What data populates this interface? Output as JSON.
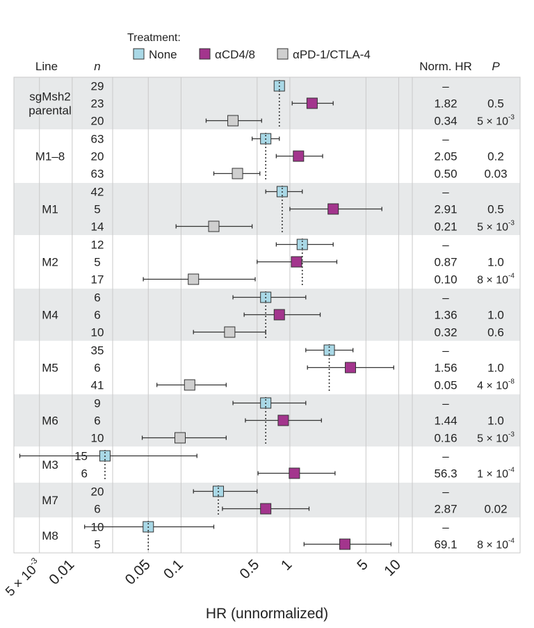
{
  "chart_data": {
    "type": "forest",
    "xlabel": "HR (unnormalized)",
    "xscale": "log",
    "xlim": [
      0.003,
      15
    ],
    "legend": {
      "title": "Treatment:",
      "entries": [
        {
          "label": "None",
          "color": "#a9d8e6"
        },
        {
          "label": "αCD4/8",
          "color": "#a3358d"
        },
        {
          "label": "αPD-1/CTLA-4",
          "color": "#cfcfcf"
        }
      ]
    },
    "column_headers": {
      "line": "Line",
      "n": "n",
      "norm_hr": "Norm. HR",
      "p": "P"
    },
    "ticks": [
      {
        "value": 0.005,
        "base": "5 × 10",
        "exp": "-3"
      },
      {
        "value": 0.01,
        "label": "0.01"
      },
      {
        "value": 0.05,
        "label": "0.05"
      },
      {
        "value": 0.1,
        "label": "0.1"
      },
      {
        "value": 0.5,
        "label": "0.5"
      },
      {
        "value": 1,
        "label": "1"
      },
      {
        "value": 5,
        "label": "5"
      },
      {
        "value": 10,
        "label": "10"
      }
    ],
    "groups": [
      {
        "line": [
          "sgMsh2",
          "parental"
        ],
        "ref": 0.8,
        "shaded": true,
        "rows": [
          {
            "n": "29",
            "treatment": "None",
            "hr": 0.8,
            "lo": 0.8,
            "hi": 0.8,
            "norm_hr": "–",
            "p": ""
          },
          {
            "n": "23",
            "treatment": "αCD4/8",
            "hr": 1.6,
            "lo": 1.05,
            "hi": 2.5,
            "norm_hr": "1.82",
            "p": "0.5"
          },
          {
            "n": "20",
            "treatment": "αPD-1/CTLA-4",
            "hr": 0.3,
            "lo": 0.17,
            "hi": 0.55,
            "norm_hr": "0.34",
            "p_base": "5 × 10",
            "p_exp": "-3"
          }
        ]
      },
      {
        "line": [
          "M1–8"
        ],
        "ref": 0.6,
        "shaded": false,
        "rows": [
          {
            "n": "63",
            "treatment": "None",
            "hr": 0.6,
            "lo": 0.45,
            "hi": 0.8,
            "norm_hr": "–",
            "p": ""
          },
          {
            "n": "20",
            "treatment": "αCD4/8",
            "hr": 1.2,
            "lo": 0.75,
            "hi": 2.0,
            "norm_hr": "2.05",
            "p": "0.2"
          },
          {
            "n": "63",
            "treatment": "αPD-1/CTLA-4",
            "hr": 0.33,
            "lo": 0.2,
            "hi": 0.53,
            "norm_hr": "0.50",
            "p": "0.03"
          }
        ]
      },
      {
        "line": [
          "M1"
        ],
        "ref": 0.85,
        "shaded": true,
        "rows": [
          {
            "n": "42",
            "treatment": "None",
            "hr": 0.85,
            "lo": 0.6,
            "hi": 1.3,
            "norm_hr": "–",
            "p": ""
          },
          {
            "n": "5",
            "treatment": "αCD4/8",
            "hr": 2.5,
            "lo": 1.0,
            "hi": 7.0,
            "norm_hr": "2.91",
            "p": "0.5"
          },
          {
            "n": "14",
            "treatment": "αPD-1/CTLA-4",
            "hr": 0.2,
            "lo": 0.09,
            "hi": 0.45,
            "norm_hr": "0.21",
            "p_base": "5 × 10",
            "p_exp": "-3"
          }
        ]
      },
      {
        "line": [
          "M2"
        ],
        "ref": 1.3,
        "shaded": false,
        "rows": [
          {
            "n": "12",
            "treatment": "None",
            "hr": 1.3,
            "lo": 0.75,
            "hi": 2.5,
            "norm_hr": "–",
            "p": ""
          },
          {
            "n": "5",
            "treatment": "αCD4/8",
            "hr": 1.15,
            "lo": 0.5,
            "hi": 2.7,
            "norm_hr": "0.87",
            "p": "1.0"
          },
          {
            "n": "17",
            "treatment": "αPD-1/CTLA-4",
            "hr": 0.13,
            "lo": 0.045,
            "hi": 0.48,
            "norm_hr": "0.10",
            "p_base": "8 × 10",
            "p_exp": "-4"
          }
        ]
      },
      {
        "line": [
          "M4"
        ],
        "ref": 0.6,
        "shaded": true,
        "rows": [
          {
            "n": "6",
            "treatment": "None",
            "hr": 0.6,
            "lo": 0.3,
            "hi": 1.4,
            "norm_hr": "–",
            "p": ""
          },
          {
            "n": "6",
            "treatment": "αCD4/8",
            "hr": 0.8,
            "lo": 0.38,
            "hi": 1.9,
            "norm_hr": "1.36",
            "p": "1.0"
          },
          {
            "n": "10",
            "treatment": "αPD-1/CTLA-4",
            "hr": 0.28,
            "lo": 0.13,
            "hi": 0.6,
            "norm_hr": "0.32",
            "p": "0.6"
          }
        ]
      },
      {
        "line": [
          "M5"
        ],
        "ref": 2.3,
        "shaded": false,
        "rows": [
          {
            "n": "35",
            "treatment": "None",
            "hr": 2.3,
            "lo": 1.4,
            "hi": 3.8,
            "norm_hr": "–",
            "p": ""
          },
          {
            "n": "6",
            "treatment": "αCD4/8",
            "hr": 3.6,
            "lo": 1.45,
            "hi": 9.0,
            "norm_hr": "1.56",
            "p": "1.0"
          },
          {
            "n": "41",
            "treatment": "αPD-1/CTLA-4",
            "hr": 0.12,
            "lo": 0.06,
            "hi": 0.26,
            "norm_hr": "0.05",
            "p_base": "4 × 10",
            "p_exp": "-8"
          }
        ]
      },
      {
        "line": [
          "M6"
        ],
        "ref": 0.6,
        "shaded": true,
        "rows": [
          {
            "n": "9",
            "treatment": "None",
            "hr": 0.6,
            "lo": 0.3,
            "hi": 1.4,
            "norm_hr": "–",
            "p": ""
          },
          {
            "n": "6",
            "treatment": "αCD4/8",
            "hr": 0.87,
            "lo": 0.39,
            "hi": 1.95,
            "norm_hr": "1.44",
            "p": "1.0"
          },
          {
            "n": "10",
            "treatment": "αPD-1/CTLA-4",
            "hr": 0.098,
            "lo": 0.044,
            "hi": 0.26,
            "norm_hr": "0.16",
            "p_base": "5 × 10",
            "p_exp": "-3"
          }
        ]
      },
      {
        "line": [
          "M3"
        ],
        "ref": 0.02,
        "shaded": false,
        "rows": [
          {
            "n": "15",
            "treatment": "None",
            "hr": 0.02,
            "lo": 0.0033,
            "hi": 0.14,
            "norm_hr": "–",
            "p": ""
          },
          {
            "n": "6",
            "treatment": "αCD4/8",
            "hr": 1.1,
            "lo": 0.51,
            "hi": 2.6,
            "norm_hr": "56.3",
            "p_base": "1 × 10",
            "p_exp": "-4"
          }
        ]
      },
      {
        "line": [
          "M7"
        ],
        "ref": 0.22,
        "shaded": true,
        "rows": [
          {
            "n": "20",
            "treatment": "None",
            "hr": 0.22,
            "lo": 0.13,
            "hi": 0.5,
            "norm_hr": "–",
            "p": ""
          },
          {
            "n": "6",
            "treatment": "αCD4/8",
            "hr": 0.6,
            "lo": 0.24,
            "hi": 1.5,
            "norm_hr": "2.87",
            "p": "0.02"
          }
        ]
      },
      {
        "line": [
          "M8"
        ],
        "ref": 0.05,
        "shaded": false,
        "rows": [
          {
            "n": "10",
            "treatment": "None",
            "hr": 0.05,
            "lo": 0.013,
            "hi": 0.2,
            "norm_hr": "–",
            "p": ""
          },
          {
            "n": "5",
            "treatment": "αCD4/8",
            "hr": 3.2,
            "lo": 1.35,
            "hi": 8.5,
            "norm_hr": "69.1",
            "p_base": "8 × 10",
            "p_exp": "-4"
          }
        ]
      }
    ]
  }
}
